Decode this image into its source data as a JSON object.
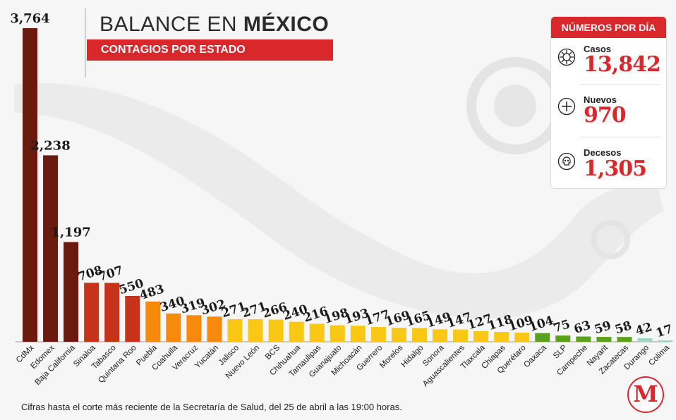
{
  "header": {
    "title_regular": "BALANCE EN ",
    "title_bold": "MÉXICO",
    "subtitle": "CONTAGIOS POR ESTADO"
  },
  "stats_panel": {
    "heading": "NÚMEROS POR DÍA",
    "items": [
      {
        "label": "Casos",
        "value": "13,842",
        "icon": "virus-icon"
      },
      {
        "label": "Nuevos",
        "value": "970",
        "icon": "plus-circle-icon"
      },
      {
        "label": "Decesos",
        "value": "1,305",
        "icon": "skull-icon"
      }
    ]
  },
  "footnote": "Cifras hasta el corte más reciente de la Secretaría de Salud, del 25 de abril a las 19:00 horas.",
  "logo": {
    "text": "M"
  },
  "colors": {
    "accent": "#d9272b",
    "dark_brown": "#6b1a0e",
    "dark_red": "#c6321a",
    "orange": "#f58a0c",
    "yellow": "#f9c814",
    "green": "#5aa21d",
    "teal": "#9fd6c2"
  },
  "chart_data": {
    "type": "bar",
    "categories": [
      "CdMx",
      "Edomex",
      "Baja California",
      "Sinaloa",
      "Tabasco",
      "Quintana Roo",
      "Puebla",
      "Coahuila",
      "Veracruz",
      "Yucatán",
      "Jalisco",
      "Nuevo León",
      "BCS",
      "Chihuahua",
      "Tamaulipas",
      "Guanajuato",
      "Michoacán",
      "Guerrero",
      "Morelos",
      "Hidalgo",
      "Sonora",
      "Aguascalientes",
      "Tlaxcala",
      "Chiapas",
      "Querétaro",
      "Oaxaca",
      "SLP",
      "Campeche",
      "Nayarit",
      "Zacatecas",
      "Durango",
      "Colima"
    ],
    "values": [
      3764,
      2238,
      1197,
      708,
      707,
      550,
      483,
      340,
      319,
      302,
      271,
      271,
      266,
      240,
      216,
      198,
      193,
      177,
      169,
      165,
      149,
      147,
      127,
      118,
      109,
      104,
      75,
      63,
      59,
      58,
      42,
      17
    ],
    "value_labels": [
      "3,764",
      "2,238",
      "1,197",
      "708",
      "707",
      "550",
      "483",
      "340",
      "319",
      "302",
      "271",
      "271",
      "266",
      "240",
      "216",
      "198",
      "193",
      "177",
      "169",
      "165",
      "149",
      "147",
      "127",
      "118",
      "109",
      "104",
      "75",
      "63",
      "59",
      "58",
      "42",
      "17"
    ],
    "bar_colors": [
      "#6b1a0e",
      "#6b1a0e",
      "#6b1a0e",
      "#c6321a",
      "#c6321a",
      "#c6321a",
      "#f58a0c",
      "#f58a0c",
      "#f58a0c",
      "#f58a0c",
      "#f9c814",
      "#f9c814",
      "#f9c814",
      "#f9c814",
      "#f9c814",
      "#f9c814",
      "#f9c814",
      "#f9c814",
      "#f9c814",
      "#f9c814",
      "#f9c814",
      "#f9c814",
      "#f9c814",
      "#f9c814",
      "#f9c814",
      "#5aa21d",
      "#5aa21d",
      "#5aa21d",
      "#5aa21d",
      "#5aa21d",
      "#9fd6c2",
      "#9fd6c2"
    ],
    "title": "CONTAGIOS POR ESTADO",
    "xlabel": "",
    "ylabel": "",
    "ylim": [
      0,
      3764
    ],
    "grid": false,
    "legend": "none"
  }
}
